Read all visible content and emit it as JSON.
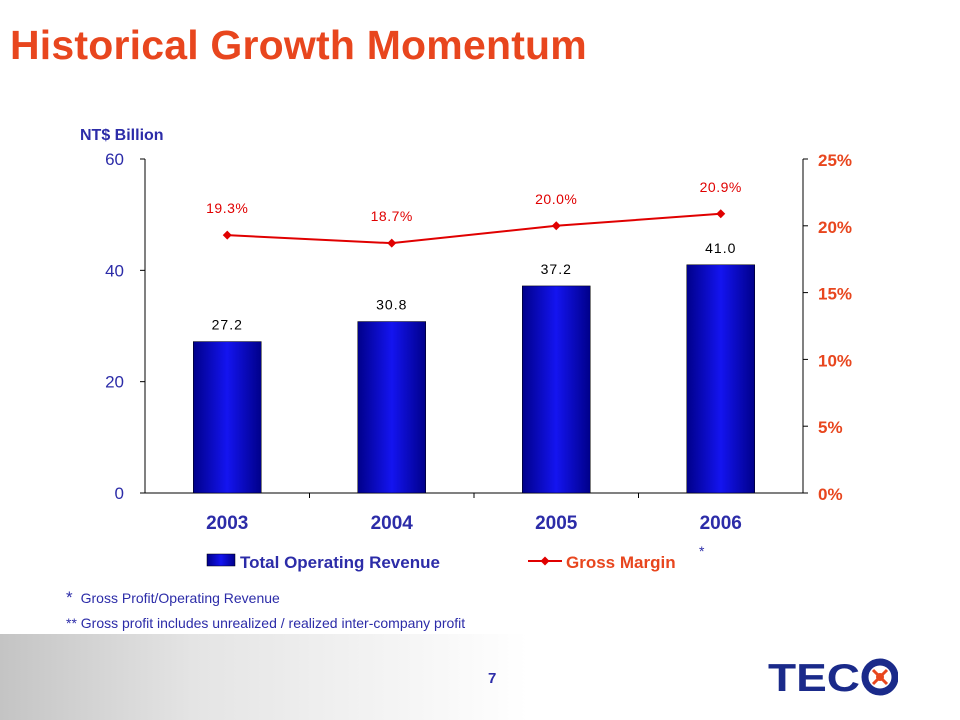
{
  "page": {
    "title": "Historical Growth Momentum",
    "page_number": "7",
    "footnotes": {
      "note1_marker": "*",
      "note1_text": "Gross Profit/Operating Revenue",
      "note2_text": "** Gross profit includes unrealized / realized inter-company profit"
    },
    "logo_text": "TECO"
  },
  "chart_data": {
    "type": "bar",
    "categories": [
      "2003",
      "2004",
      "2005",
      "2006"
    ],
    "series": [
      {
        "name": "Total Operating Revenue",
        "kind": "bar",
        "axis": "left",
        "values": [
          27.2,
          30.8,
          37.2,
          41.0
        ],
        "labels": [
          "27.2",
          "30.8",
          "37.2",
          "41.0"
        ],
        "color": "#1010d8"
      },
      {
        "name": "Gross Margin",
        "kind": "line",
        "axis": "right",
        "values": [
          19.3,
          18.7,
          20.0,
          20.9
        ],
        "labels": [
          "19.3%",
          "18.7%",
          "20.0%",
          "20.9%"
        ],
        "color": "#e00000"
      }
    ],
    "ylabel": "NT$ Billion",
    "ylim": [
      0,
      60
    ],
    "yticks": [
      "0",
      "20",
      "40",
      "60"
    ],
    "y2lim": [
      0,
      25
    ],
    "y2ticks": [
      "0%",
      "5%",
      "10%",
      "15%",
      "20%",
      "25%"
    ],
    "legend_marker": "*",
    "legend_position": "bottom",
    "grid": false
  },
  "colors": {
    "title": "#e8461e",
    "text_blue": "#2c2ca8",
    "bar": "#1010d8",
    "line": "#e00000",
    "logo": "#1a2a8a"
  }
}
